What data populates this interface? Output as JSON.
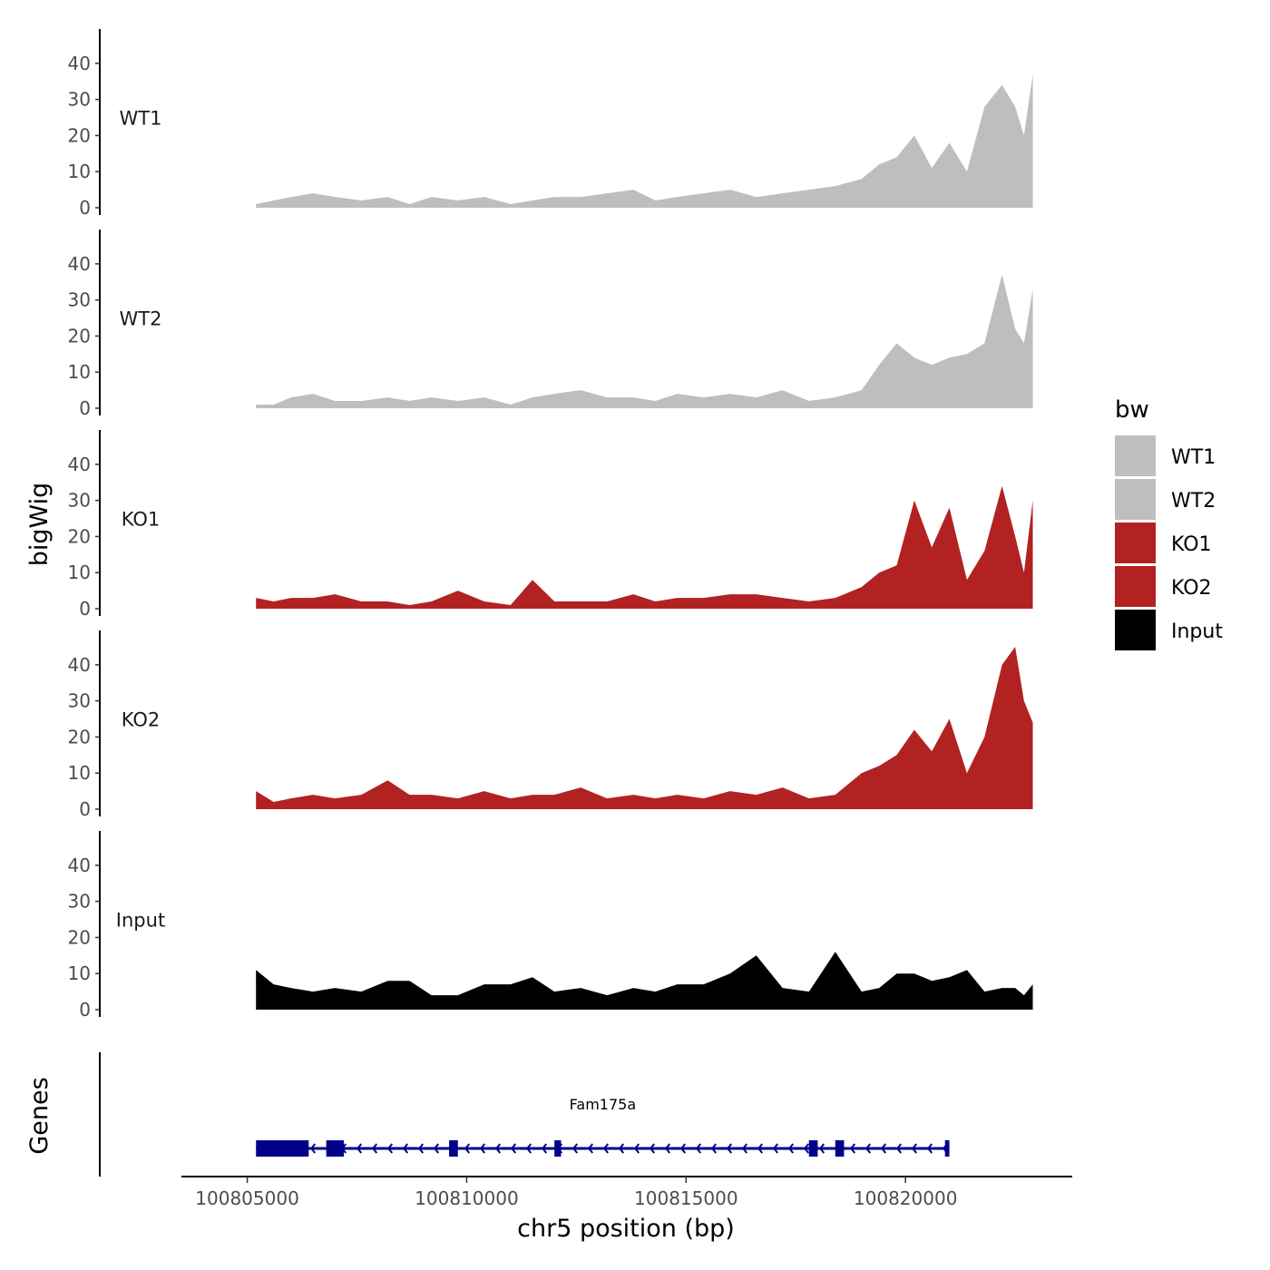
{
  "chart_data": {
    "type": "area",
    "title": "",
    "xlabel": "chr5 position (bp)",
    "ylabel": "bigWig",
    "genes_label": "Genes",
    "xlim": [
      100803500,
      100823800
    ],
    "ylim": [
      0,
      47
    ],
    "x_ticks": [
      100805000,
      100810000,
      100815000,
      100820000
    ],
    "x_tick_labels": [
      "100805000",
      "100810000",
      "100815000",
      "100820000"
    ],
    "y_ticks": [
      0,
      10,
      20,
      30,
      40
    ],
    "y_tick_labels": [
      "0",
      "10",
      "20",
      "30",
      "40"
    ],
    "legend": {
      "title": "bw",
      "position": "right",
      "entries": [
        {
          "label": "WT1",
          "color": "#bebebe"
        },
        {
          "label": "WT2",
          "color": "#bebebe"
        },
        {
          "label": "KO1",
          "color": "#b22222"
        },
        {
          "label": "KO2",
          "color": "#b22222"
        },
        {
          "label": "Input",
          "color": "#000000"
        }
      ]
    },
    "series": [
      {
        "name": "WT1",
        "color": "#bebebe",
        "x": [
          100805200,
          100805600,
          100806000,
          100806500,
          100807000,
          100807600,
          100808200,
          100808700,
          100809200,
          100809800,
          100810400,
          100811000,
          100811500,
          100812000,
          100812600,
          100813200,
          100813800,
          100814300,
          100814800,
          100815400,
          100816000,
          100816600,
          100817200,
          100817800,
          100818400,
          100819000,
          100819400,
          100819800,
          100820200,
          100820600,
          100821000,
          100821400,
          100821800,
          100822200,
          100822500,
          100822700,
          100822900
        ],
        "y": [
          1,
          2,
          3,
          4,
          3,
          2,
          3,
          1,
          3,
          2,
          3,
          1,
          2,
          3,
          3,
          4,
          5,
          2,
          3,
          4,
          5,
          3,
          4,
          5,
          6,
          8,
          12,
          14,
          20,
          11,
          18,
          10,
          28,
          34,
          28,
          20,
          37
        ]
      },
      {
        "name": "WT2",
        "color": "#bebebe",
        "x": [
          100805200,
          100805600,
          100806000,
          100806500,
          100807000,
          100807600,
          100808200,
          100808700,
          100809200,
          100809800,
          100810400,
          100811000,
          100811500,
          100812000,
          100812600,
          100813200,
          100813800,
          100814300,
          100814800,
          100815400,
          100816000,
          100816600,
          100817200,
          100817800,
          100818400,
          100819000,
          100819400,
          100819800,
          100820200,
          100820600,
          100821000,
          100821400,
          100821800,
          100822200,
          100822500,
          100822700,
          100822900
        ],
        "y": [
          1,
          1,
          3,
          4,
          2,
          2,
          3,
          2,
          3,
          2,
          3,
          1,
          3,
          4,
          5,
          3,
          3,
          2,
          4,
          3,
          4,
          3,
          5,
          2,
          3,
          5,
          12,
          18,
          14,
          12,
          14,
          15,
          18,
          37,
          22,
          18,
          33
        ]
      },
      {
        "name": "KO1",
        "color": "#b22222",
        "x": [
          100805200,
          100805600,
          100806000,
          100806500,
          100807000,
          100807600,
          100808200,
          100808700,
          100809200,
          100809800,
          100810400,
          100811000,
          100811500,
          100812000,
          100812600,
          100813200,
          100813800,
          100814300,
          100814800,
          100815400,
          100816000,
          100816600,
          100817200,
          100817800,
          100818400,
          100819000,
          100819400,
          100819800,
          100820200,
          100820600,
          100821000,
          100821400,
          100821800,
          100822200,
          100822500,
          100822700,
          100822900
        ],
        "y": [
          3,
          2,
          3,
          3,
          4,
          2,
          2,
          1,
          2,
          5,
          2,
          1,
          8,
          2,
          2,
          2,
          4,
          2,
          3,
          3,
          4,
          4,
          3,
          2,
          3,
          6,
          10,
          12,
          30,
          17,
          28,
          8,
          16,
          34,
          20,
          10,
          30
        ]
      },
      {
        "name": "KO2",
        "color": "#b22222",
        "x": [
          100805200,
          100805600,
          100806000,
          100806500,
          100807000,
          100807600,
          100808200,
          100808700,
          100809200,
          100809800,
          100810400,
          100811000,
          100811500,
          100812000,
          100812600,
          100813200,
          100813800,
          100814300,
          100814800,
          100815400,
          100816000,
          100816600,
          100817200,
          100817800,
          100818400,
          100819000,
          100819400,
          100819800,
          100820200,
          100820600,
          100821000,
          100821400,
          100821800,
          100822200,
          100822500,
          100822700,
          100822900
        ],
        "y": [
          5,
          2,
          3,
          4,
          3,
          4,
          8,
          4,
          4,
          3,
          5,
          3,
          4,
          4,
          6,
          3,
          4,
          3,
          4,
          3,
          5,
          4,
          6,
          3,
          4,
          10,
          12,
          15,
          22,
          16,
          25,
          10,
          20,
          40,
          45,
          30,
          24
        ]
      },
      {
        "name": "Input",
        "color": "#000000",
        "x": [
          100805200,
          100805600,
          100806000,
          100806500,
          100807000,
          100807600,
          100808200,
          100808700,
          100809200,
          100809800,
          100810400,
          100811000,
          100811500,
          100812000,
          100812600,
          100813200,
          100813800,
          100814300,
          100814800,
          100815400,
          100816000,
          100816600,
          100817200,
          100817800,
          100818400,
          100819000,
          100819400,
          100819800,
          100820200,
          100820600,
          100821000,
          100821400,
          100821800,
          100822200,
          100822500,
          100822700,
          100822900
        ],
        "y": [
          11,
          7,
          6,
          5,
          6,
          5,
          8,
          8,
          4,
          4,
          7,
          7,
          9,
          5,
          6,
          4,
          6,
          5,
          7,
          7,
          10,
          15,
          6,
          5,
          16,
          5,
          6,
          10,
          10,
          8,
          9,
          11,
          5,
          6,
          6,
          4,
          7
        ]
      }
    ],
    "genes": [
      {
        "name": "Fam175a",
        "strand": "-",
        "start": 100805200,
        "end": 100821000,
        "exons": [
          [
            100805200,
            100806400
          ],
          [
            100806800,
            100807200
          ],
          [
            100809600,
            100809800
          ],
          [
            100812000,
            100812150
          ],
          [
            100817800,
            100818000
          ],
          [
            100818400,
            100818600
          ],
          [
            100820900,
            100821000
          ]
        ]
      }
    ]
  }
}
